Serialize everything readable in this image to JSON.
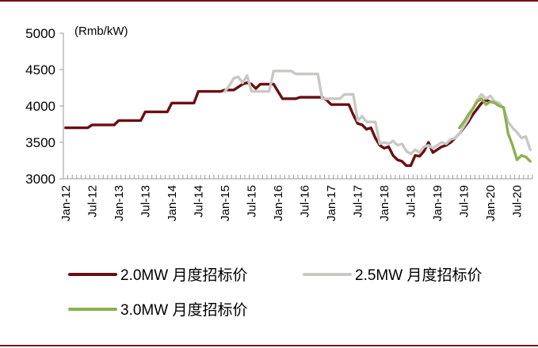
{
  "chart_data": {
    "type": "line",
    "unit_label": "(Rmb/kW)",
    "ylim": [
      3000,
      5000
    ],
    "y_ticks": [
      3000,
      3500,
      4000,
      4500,
      5000
    ],
    "x_ticks": [
      "Jan-12",
      "Jul-12",
      "Jan-13",
      "Jul-13",
      "Jan-14",
      "Jul-14",
      "Jan-15",
      "Jul-15",
      "Jan-16",
      "Jul-16",
      "Jan-17",
      "Jul-17",
      "Jan-18",
      "Jul-18",
      "Jan-19",
      "Jul-19",
      "Jan-20",
      "Jul-20"
    ],
    "grid": false,
    "legend_position": "bottom",
    "series": [
      {
        "name": "2.0MW 月度招标价",
        "color": "#6b0f12",
        "points": [
          [
            "2012-01",
            3700
          ],
          [
            "2012-06",
            3700
          ],
          [
            "2012-07",
            3740
          ],
          [
            "2012-12",
            3740
          ],
          [
            "2013-01",
            3800
          ],
          [
            "2013-06",
            3800
          ],
          [
            "2013-07",
            3920
          ],
          [
            "2013-12",
            3920
          ],
          [
            "2014-01",
            4040
          ],
          [
            "2014-06",
            4040
          ],
          [
            "2014-07",
            4200
          ],
          [
            "2014-12",
            4200
          ],
          [
            "2015-01",
            4220
          ],
          [
            "2015-03",
            4220
          ],
          [
            "2015-05",
            4300
          ],
          [
            "2015-06",
            4320
          ],
          [
            "2015-07",
            4300
          ],
          [
            "2015-08",
            4240
          ],
          [
            "2015-09",
            4300
          ],
          [
            "2015-12",
            4300
          ],
          [
            "2016-01",
            4200
          ],
          [
            "2016-02",
            4100
          ],
          [
            "2016-05",
            4100
          ],
          [
            "2016-06",
            4120
          ],
          [
            "2016-11",
            4120
          ],
          [
            "2016-12",
            4080
          ],
          [
            "2017-01",
            4020
          ],
          [
            "2017-05",
            4020
          ],
          [
            "2017-06",
            3880
          ],
          [
            "2017-07",
            3760
          ],
          [
            "2017-08",
            3740
          ],
          [
            "2017-09",
            3680
          ],
          [
            "2017-10",
            3700
          ],
          [
            "2017-11",
            3560
          ],
          [
            "2017-12",
            3460
          ],
          [
            "2018-01",
            3420
          ],
          [
            "2018-02",
            3440
          ],
          [
            "2018-03",
            3320
          ],
          [
            "2018-04",
            3260
          ],
          [
            "2018-05",
            3240
          ],
          [
            "2018-06",
            3180
          ],
          [
            "2018-07",
            3180
          ],
          [
            "2018-08",
            3320
          ],
          [
            "2018-09",
            3310
          ],
          [
            "2018-10",
            3380
          ],
          [
            "2018-11",
            3500
          ],
          [
            "2018-12",
            3360
          ],
          [
            "2019-01",
            3400
          ],
          [
            "2019-02",
            3440
          ],
          [
            "2019-03",
            3460
          ],
          [
            "2019-04",
            3500
          ],
          [
            "2019-05",
            3560
          ],
          [
            "2019-06",
            3620
          ],
          [
            "2019-07",
            3700
          ],
          [
            "2019-08",
            3780
          ],
          [
            "2019-09",
            3880
          ],
          [
            "2019-10",
            3960
          ],
          [
            "2019-11",
            4040
          ],
          [
            "2019-12",
            4080
          ],
          [
            "2020-01",
            4060
          ]
        ]
      },
      {
        "name": "2.5MW 月度招标价",
        "color": "#c8c8c5",
        "points": [
          [
            "2015-01",
            4200
          ],
          [
            "2015-02",
            4280
          ],
          [
            "2015-03",
            4380
          ],
          [
            "2015-04",
            4400
          ],
          [
            "2015-05",
            4320
          ],
          [
            "2015-06",
            4420
          ],
          [
            "2015-07",
            4200
          ],
          [
            "2015-11",
            4200
          ],
          [
            "2015-12",
            4480
          ],
          [
            "2016-04",
            4480
          ],
          [
            "2016-05",
            4440
          ],
          [
            "2016-10",
            4440
          ],
          [
            "2016-11",
            4100
          ],
          [
            "2017-03",
            4100
          ],
          [
            "2017-04",
            4160
          ],
          [
            "2017-06",
            4160
          ],
          [
            "2017-07",
            3800
          ],
          [
            "2017-08",
            3860
          ],
          [
            "2017-09",
            3780
          ],
          [
            "2017-11",
            3780
          ],
          [
            "2017-12",
            3480
          ],
          [
            "2018-01",
            3500
          ],
          [
            "2018-02",
            3480
          ],
          [
            "2018-03",
            3520
          ],
          [
            "2018-04",
            3460
          ],
          [
            "2018-05",
            3480
          ],
          [
            "2018-06",
            3380
          ],
          [
            "2018-07",
            3340
          ],
          [
            "2018-08",
            3400
          ],
          [
            "2018-09",
            3360
          ],
          [
            "2018-10",
            3440
          ],
          [
            "2018-11",
            3460
          ],
          [
            "2018-12",
            3420
          ],
          [
            "2019-01",
            3460
          ],
          [
            "2019-02",
            3500
          ],
          [
            "2019-03",
            3480
          ],
          [
            "2019-04",
            3540
          ],
          [
            "2019-05",
            3560
          ],
          [
            "2019-06",
            3620
          ],
          [
            "2019-07",
            3720
          ],
          [
            "2019-08",
            3820
          ],
          [
            "2019-09",
            3960
          ],
          [
            "2019-10",
            4080
          ],
          [
            "2019-11",
            4160
          ],
          [
            "2019-12",
            4100
          ],
          [
            "2020-01",
            4140
          ],
          [
            "2020-02",
            4060
          ],
          [
            "2020-03",
            4040
          ],
          [
            "2020-04",
            3960
          ],
          [
            "2020-05",
            3780
          ],
          [
            "2020-06",
            3700
          ],
          [
            "2020-07",
            3640
          ],
          [
            "2020-08",
            3560
          ],
          [
            "2020-09",
            3580
          ],
          [
            "2020-10",
            3400
          ]
        ]
      },
      {
        "name": "3.0MW 月度招标价",
        "color": "#8db04f",
        "points": [
          [
            "2019-06",
            3700
          ],
          [
            "2019-07",
            3780
          ],
          [
            "2019-08",
            3880
          ],
          [
            "2019-09",
            3960
          ],
          [
            "2019-10",
            4060
          ],
          [
            "2019-11",
            4100
          ],
          [
            "2019-12",
            4020
          ],
          [
            "2020-01",
            4060
          ],
          [
            "2020-02",
            4040
          ],
          [
            "2020-03",
            4000
          ],
          [
            "2020-04",
            3980
          ],
          [
            "2020-05",
            3620
          ],
          [
            "2020-06",
            3460
          ],
          [
            "2020-07",
            3260
          ],
          [
            "2020-08",
            3320
          ],
          [
            "2020-09",
            3300
          ],
          [
            "2020-10",
            3240
          ]
        ]
      }
    ]
  }
}
